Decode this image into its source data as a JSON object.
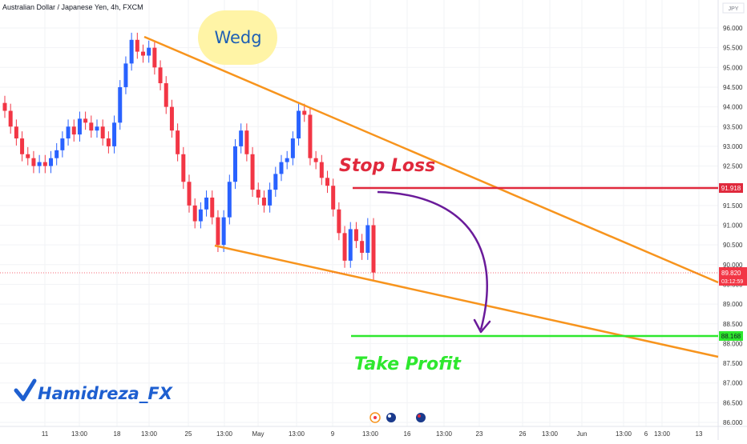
{
  "header": {
    "title": "Australian Dollar / Japanese Yen, 4h, FXCM"
  },
  "axis": {
    "currency_label": "JPY"
  },
  "colors": {
    "up": "#2962ff",
    "down": "#f23645",
    "wedge": "#f7941d",
    "stop": "#e0293c",
    "take": "#2ee82e",
    "arrow": "#6a1b9a",
    "badge_bg": "#fff4a6",
    "badge_text": "#1e5fb4",
    "brand": "#1e5fd0"
  },
  "annotations": {
    "badge": "Wedg",
    "stop_loss": "Stop Loss",
    "take_profit": "Take Profit",
    "author": "Hamidreza_FX"
  },
  "price_tags": {
    "stop": "91.918",
    "current": "89.820",
    "countdown": "03:12:59",
    "take": "88.168"
  },
  "chart_data": {
    "type": "candlestick",
    "title": "Australian Dollar / Japanese Yen, 4h, FXCM",
    "ylim": [
      85.9,
      96.7
    ],
    "y_ticks": [
      "86.000",
      "86.500",
      "87.000",
      "87.500",
      "88.000",
      "88.500",
      "89.000",
      "89.500",
      "90.000",
      "90.500",
      "91.000",
      "91.500",
      "92.000",
      "92.500",
      "93.000",
      "93.500",
      "94.000",
      "94.500",
      "95.000",
      "95.500",
      "96.000"
    ],
    "x_ticks": [
      "11",
      "13:00",
      "18",
      "13:00",
      "25",
      "13:00",
      "May",
      "13:00",
      "9",
      "13:00",
      "16",
      "13:00",
      "23",
      "26",
      "13:00",
      "Jun",
      "13:00",
      "6",
      "13:00",
      "13"
    ],
    "grid": true,
    "series": [
      {
        "values": [
          93.9,
          93.5,
          93.2,
          92.8,
          92.7,
          92.5,
          92.6,
          92.5,
          92.7,
          92.9,
          93.2,
          93.5,
          93.3,
          93.7,
          93.6,
          93.4,
          93.5,
          93.2,
          93.0,
          93.6,
          94.5,
          95.1,
          95.7,
          95.4,
          95.3,
          95.5,
          95.0,
          94.6,
          94.0,
          93.4,
          92.8,
          92.1,
          91.5,
          91.1,
          91.4,
          91.7,
          91.2,
          90.5,
          91.2,
          92.1,
          93.0,
          93.4,
          92.8,
          91.9,
          91.7,
          91.5,
          91.9,
          92.3,
          92.6,
          92.7,
          93.2,
          93.9,
          93.8,
          92.7,
          92.6,
          92.2,
          92.0,
          91.4,
          90.8,
          90.1,
          90.9,
          90.6,
          90.3,
          91.0,
          89.8
        ]
      }
    ],
    "levels": {
      "stop_loss": 91.918,
      "take_profit": 88.168,
      "current": 89.82
    }
  }
}
